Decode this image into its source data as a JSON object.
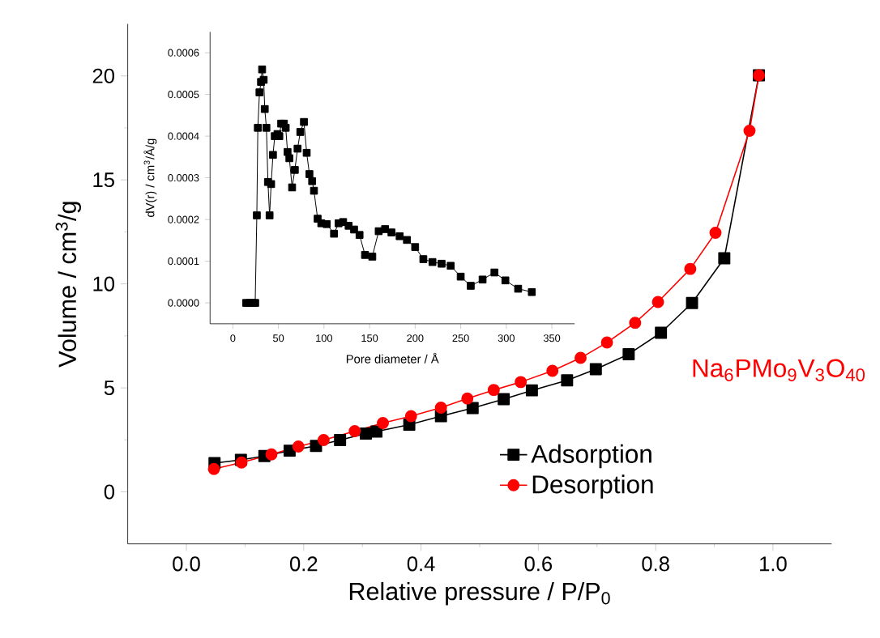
{
  "chart_data": [
    {
      "type": "line",
      "xlabel": "Relative pressure / P/P$_{0}$",
      "ylabel": "Volume / cm$^{3}$/g",
      "annotations": [
        "Na$_{6}$PMo$_{9}$V$_{3}$O$_{40}$"
      ],
      "xlim": [
        -0.1,
        1.1
      ],
      "ylim": [
        -2.5,
        22.5
      ],
      "xticks": [
        {
          "value": 0,
          "label": "0.0"
        },
        {
          "value": 0.2,
          "label": "0.2"
        },
        {
          "value": 0.4,
          "label": "0.4"
        },
        {
          "value": 0.6,
          "label": "0.6"
        },
        {
          "value": 0.8,
          "label": "0.8"
        },
        {
          "value": 1,
          "label": "1.0"
        }
      ],
      "yticks": [
        0,
        5,
        10,
        15,
        20
      ],
      "legend": "bottom right",
      "series": [
        {
          "name": "Adsorption",
          "color": "#000000",
          "marker": "square",
          "x": [
            0.048,
            0.093,
            0.133,
            0.176,
            0.221,
            0.262,
            0.306,
            0.324,
            0.38,
            0.434,
            0.488,
            0.541,
            0.589,
            0.649,
            0.698,
            0.754,
            0.809,
            0.862,
            0.917,
            0.976
          ],
          "values": [
            1.38,
            1.54,
            1.72,
            1.98,
            2.21,
            2.49,
            2.8,
            2.9,
            3.23,
            3.64,
            4.03,
            4.46,
            4.88,
            5.36,
            5.9,
            6.62,
            7.65,
            9.08,
            11.23,
            20.03
          ]
        },
        {
          "name": "Desorption",
          "color": "#ff0000",
          "marker": "circle",
          "x": [
            0.047,
            0.094,
            0.145,
            0.191,
            0.234,
            0.287,
            0.335,
            0.383,
            0.434,
            0.479,
            0.524,
            0.57,
            0.624,
            0.672,
            0.717,
            0.765,
            0.804,
            0.859,
            0.902,
            0.96,
            0.976
          ],
          "values": [
            1.1,
            1.41,
            1.8,
            2.18,
            2.49,
            2.92,
            3.31,
            3.64,
            4.05,
            4.49,
            4.9,
            5.28,
            5.82,
            6.44,
            7.18,
            8.13,
            9.13,
            10.72,
            12.46,
            17.36,
            20.03
          ]
        }
      ]
    },
    {
      "type": "line",
      "xlabel": "Pore diameter / Å",
      "ylabel": "dV(r) / cm$^{3}$/Å/g",
      "xlim": [
        -25,
        375
      ],
      "ylim": [
        -5e-05,
        0.00065
      ],
      "xticks": [
        0,
        50,
        100,
        150,
        200,
        250,
        300,
        350
      ],
      "yticks": [
        {
          "value": 0,
          "label": "0.0000"
        },
        {
          "value": 0.0001,
          "label": "0.0001"
        },
        {
          "value": 0.0002,
          "label": "0.0002"
        },
        {
          "value": 0.0003,
          "label": "0.0003"
        },
        {
          "value": 0.0004,
          "label": "0.0004"
        },
        {
          "value": 0.0005,
          "label": "0.0005"
        },
        {
          "value": 0.0006,
          "label": "0.0006"
        }
      ],
      "series": [
        {
          "color": "#000000",
          "marker": "square",
          "x": [
            14.6,
            18.7,
            21.6,
            24.5,
            26.3,
            27.4,
            29.2,
            30.9,
            32.1,
            33.8,
            35,
            36.8,
            38.5,
            40.3,
            42,
            44,
            46,
            49,
            51,
            53,
            56,
            58,
            60,
            62,
            65,
            68,
            71,
            74,
            78,
            81,
            84,
            87,
            89,
            93,
            97,
            103,
            111,
            116,
            121,
            127,
            133,
            139,
            145,
            153,
            160,
            167,
            174,
            183,
            191,
            200,
            209,
            219,
            229,
            239,
            250,
            261,
            274,
            287,
            299,
            313,
            328
          ],
          "values": [
            0,
            0,
            0,
            0,
            0.00021,
            0.00042,
            0.000505,
            0.00053,
            0.00056,
            0.000535,
            0.000465,
            0.00042,
            0.00029,
            0.00021,
            0.000285,
            0.000355,
            0.0004,
            0.000405,
            0.0004,
            0.00043,
            0.00043,
            0.00042,
            0.000362,
            0.000347,
            0.000277,
            0.000319,
            0.00037,
            0.00041,
            0.000434,
            0.00036,
            0.000309,
            0.000292,
            0.000269,
            0.000202,
            0.000191,
            0.000189,
            0.000166,
            0.000191,
            0.000194,
            0.000185,
            0.000176,
            0.000163,
            0.000115,
            0.000111,
            0.000172,
            0.000177,
            0.000169,
            0.00016,
            0.000151,
            0.000134,
            0.000105,
            9.8e-05,
            9.4e-05,
            8.9e-05,
            6.3e-05,
            4.1e-05,
            5.6e-05,
            7.3e-05,
            5.4e-05,
            3.4e-05,
            2.6e-05
          ]
        }
      ]
    }
  ]
}
